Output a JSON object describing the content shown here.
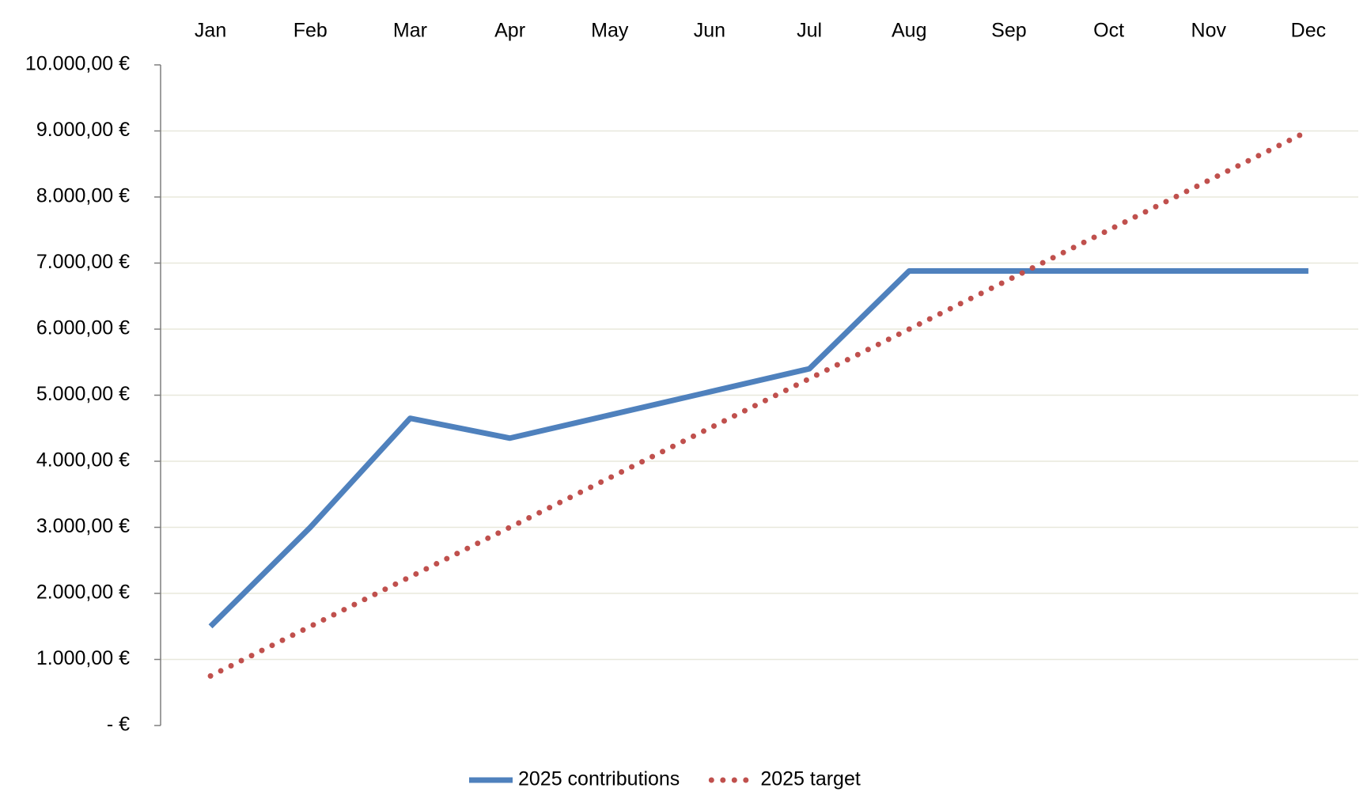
{
  "chart_data": {
    "type": "line",
    "categories": [
      "Jan",
      "Feb",
      "Mar",
      "Apr",
      "May",
      "Jun",
      "Jul",
      "Aug",
      "Sep",
      "Oct",
      "Nov",
      "Dec"
    ],
    "series": [
      {
        "name": "2025 contributions",
        "color": "#4f81bd",
        "line_style": "solid",
        "values": [
          1500,
          3000,
          4650,
          4350,
          4700,
          5050,
          5400,
          6880,
          6880,
          6880,
          6880,
          6880
        ]
      },
      {
        "name": "2025 target",
        "color": "#c0504d",
        "line_style": "dotted",
        "values": [
          750,
          1500,
          2250,
          3000,
          3750,
          4500,
          5250,
          6000,
          6750,
          7500,
          8250,
          9000
        ]
      }
    ],
    "ylim": [
      0,
      10000
    ],
    "yticks": [
      {
        "value": 0,
        "label": "-  €"
      },
      {
        "value": 1000,
        "label": "1.000,00 €"
      },
      {
        "value": 2000,
        "label": "2.000,00 €"
      },
      {
        "value": 3000,
        "label": "3.000,00 €"
      },
      {
        "value": 4000,
        "label": "4.000,00 €"
      },
      {
        "value": 5000,
        "label": "5.000,00 €"
      },
      {
        "value": 6000,
        "label": "6.000,00 €"
      },
      {
        "value": 7000,
        "label": "7.000,00 €"
      },
      {
        "value": 8000,
        "label": "8.000,00 €"
      },
      {
        "value": 9000,
        "label": "9.000,00 €"
      },
      {
        "value": 10000,
        "label": "10.000,00 €"
      }
    ],
    "grid": true,
    "legend": "bottom"
  }
}
